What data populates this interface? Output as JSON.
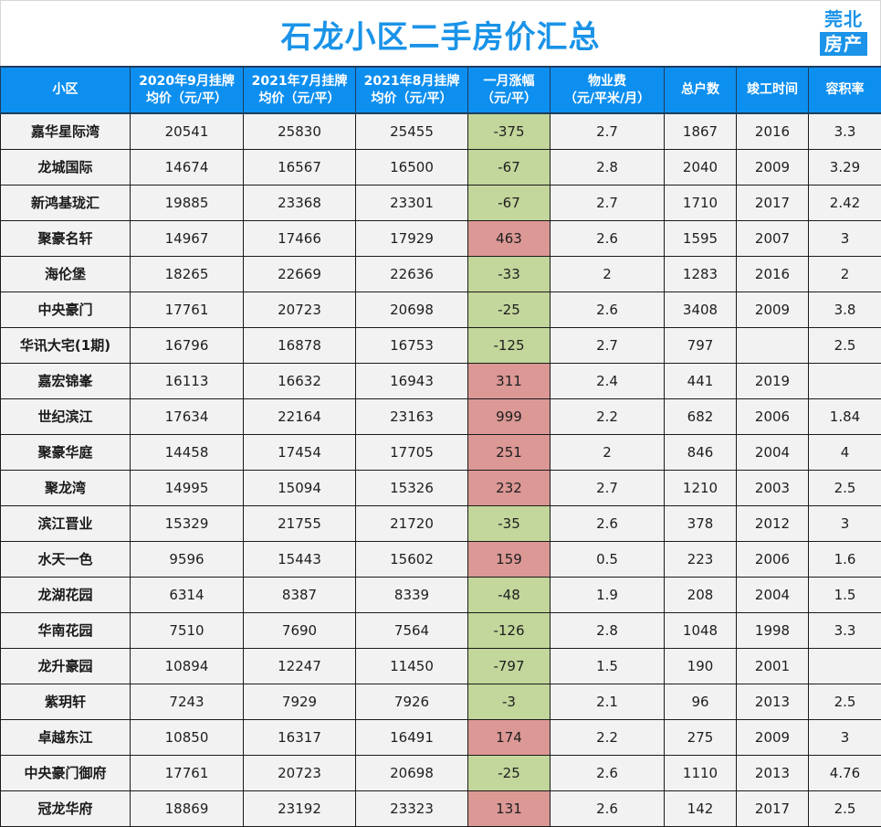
{
  "header": {
    "title": "石龙小区二手房价汇总",
    "logo_top": "莞北",
    "logo_bottom": "房产",
    "accent_color": "#1a93e8"
  },
  "table": {
    "columns": [
      {
        "line1": "小区",
        "line2": ""
      },
      {
        "line1": "2020年9月挂牌",
        "line2": "均价（元/平）"
      },
      {
        "line1": "2021年7月挂牌",
        "line2": "均价（元/平）"
      },
      {
        "line1": "2021年8月挂牌",
        "line2": "均价（元/平）"
      },
      {
        "line1": "一月涨幅",
        "line2": "（元/平）"
      },
      {
        "line1": "物业费",
        "line2": "（元/平米/月）"
      },
      {
        "line1": "总户数",
        "line2": ""
      },
      {
        "line1": "竣工时间",
        "line2": ""
      },
      {
        "line1": "容积率",
        "line2": ""
      }
    ],
    "colors": {
      "header_bg": "#0d8ff0",
      "increase_bg": "#db9895",
      "decrease_bg": "#c3d69b",
      "cell_bg": "#f2f2f2"
    },
    "rows": [
      {
        "name": "嘉华星际湾",
        "p2020_09": "20541",
        "p2021_07": "25830",
        "p2021_08": "25455",
        "change": "-375",
        "trend": "down",
        "fee": "2.7",
        "households": "1867",
        "completed": "2016",
        "far": "3.3"
      },
      {
        "name": "龙城国际",
        "p2020_09": "14674",
        "p2021_07": "16567",
        "p2021_08": "16500",
        "change": "-67",
        "trend": "down",
        "fee": "2.8",
        "households": "2040",
        "completed": "2009",
        "far": "3.29"
      },
      {
        "name": "新鸿基珑汇",
        "p2020_09": "19885",
        "p2021_07": "23368",
        "p2021_08": "23301",
        "change": "-67",
        "trend": "down",
        "fee": "2.7",
        "households": "1710",
        "completed": "2017",
        "far": "2.42"
      },
      {
        "name": "聚豪名轩",
        "p2020_09": "14967",
        "p2021_07": "17466",
        "p2021_08": "17929",
        "change": "463",
        "trend": "up",
        "fee": "2.6",
        "households": "1595",
        "completed": "2007",
        "far": "3"
      },
      {
        "name": "海伦堡",
        "p2020_09": "18265",
        "p2021_07": "22669",
        "p2021_08": "22636",
        "change": "-33",
        "trend": "down",
        "fee": "2",
        "households": "1283",
        "completed": "2016",
        "far": "2"
      },
      {
        "name": "中央豪门",
        "p2020_09": "17761",
        "p2021_07": "20723",
        "p2021_08": "20698",
        "change": "-25",
        "trend": "down",
        "fee": "2.6",
        "households": "3408",
        "completed": "2009",
        "far": "3.8"
      },
      {
        "name": "华讯大宅(1期)",
        "p2020_09": "16796",
        "p2021_07": "16878",
        "p2021_08": "16753",
        "change": "-125",
        "trend": "down",
        "fee": "2.7",
        "households": "797",
        "completed": "",
        "far": "2.5"
      },
      {
        "name": "嘉宏锦峯",
        "p2020_09": "16113",
        "p2021_07": "16632",
        "p2021_08": "16943",
        "change": "311",
        "trend": "up",
        "fee": "2.4",
        "households": "441",
        "completed": "2019",
        "far": ""
      },
      {
        "name": "世纪滨江",
        "p2020_09": "17634",
        "p2021_07": "22164",
        "p2021_08": "23163",
        "change": "999",
        "trend": "up",
        "fee": "2.2",
        "households": "682",
        "completed": "2006",
        "far": "1.84"
      },
      {
        "name": "聚豪华庭",
        "p2020_09": "14458",
        "p2021_07": "17454",
        "p2021_08": "17705",
        "change": "251",
        "trend": "up",
        "fee": "2",
        "households": "846",
        "completed": "2004",
        "far": "4"
      },
      {
        "name": "聚龙湾",
        "p2020_09": "14995",
        "p2021_07": "15094",
        "p2021_08": "15326",
        "change": "232",
        "trend": "up",
        "fee": "2.7",
        "households": "1210",
        "completed": "2003",
        "far": "2.5"
      },
      {
        "name": "滨江晋业",
        "p2020_09": "15329",
        "p2021_07": "21755",
        "p2021_08": "21720",
        "change": "-35",
        "trend": "down",
        "fee": "2.6",
        "households": "378",
        "completed": "2012",
        "far": "3"
      },
      {
        "name": "水天一色",
        "p2020_09": "9596",
        "p2021_07": "15443",
        "p2021_08": "15602",
        "change": "159",
        "trend": "up",
        "fee": "0.5",
        "households": "223",
        "completed": "2006",
        "far": "1.6"
      },
      {
        "name": "龙湖花园",
        "p2020_09": "6314",
        "p2021_07": "8387",
        "p2021_08": "8339",
        "change": "-48",
        "trend": "down",
        "fee": "1.9",
        "households": "208",
        "completed": "2004",
        "far": "1.5"
      },
      {
        "name": "华南花园",
        "p2020_09": "7510",
        "p2021_07": "7690",
        "p2021_08": "7564",
        "change": "-126",
        "trend": "down",
        "fee": "2.8",
        "households": "1048",
        "completed": "1998",
        "far": "3.3"
      },
      {
        "name": "龙升豪园",
        "p2020_09": "10894",
        "p2021_07": "12247",
        "p2021_08": "11450",
        "change": "-797",
        "trend": "down",
        "fee": "1.5",
        "households": "190",
        "completed": "2001",
        "far": ""
      },
      {
        "name": "紫玥轩",
        "p2020_09": "7243",
        "p2021_07": "7929",
        "p2021_08": "7926",
        "change": "-3",
        "trend": "down",
        "fee": "2.1",
        "households": "96",
        "completed": "2013",
        "far": "2.5"
      },
      {
        "name": "卓越东江",
        "p2020_09": "10850",
        "p2021_07": "16317",
        "p2021_08": "16491",
        "change": "174",
        "trend": "up",
        "fee": "2.2",
        "households": "275",
        "completed": "2009",
        "far": "3"
      },
      {
        "name": "中央豪门御府",
        "p2020_09": "17761",
        "p2021_07": "20723",
        "p2021_08": "20698",
        "change": "-25",
        "trend": "down",
        "fee": "2.6",
        "households": "1110",
        "completed": "2013",
        "far": "4.76"
      },
      {
        "name": "冠龙华府",
        "p2020_09": "18869",
        "p2021_07": "23192",
        "p2021_08": "23323",
        "change": "131",
        "trend": "up",
        "fee": "2.6",
        "households": "142",
        "completed": "2017",
        "far": "2.5"
      }
    ]
  }
}
